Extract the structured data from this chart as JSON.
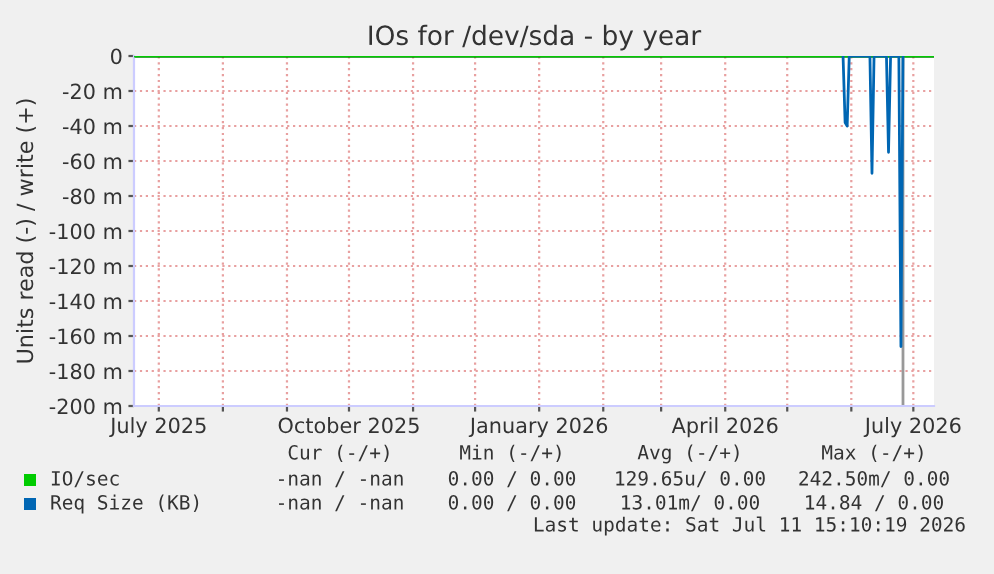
{
  "chart_data": {
    "type": "line",
    "title": "IOs for /dev/sda - by year",
    "ylabel": "Units read (-) / write (+)",
    "xlim": [
      "2025-06-19",
      "2026-07-11"
    ],
    "xticks": [
      {
        "value": "2025-07-01",
        "label": "July 2025"
      },
      {
        "value": "2025-08-01",
        "label": null
      },
      {
        "value": "2025-09-01",
        "label": null
      },
      {
        "value": "2025-10-01",
        "label": "October 2025"
      },
      {
        "value": "2025-11-01",
        "label": null
      },
      {
        "value": "2025-12-01",
        "label": null
      },
      {
        "value": "2026-01-01",
        "label": "January 2026"
      },
      {
        "value": "2026-02-01",
        "label": null
      },
      {
        "value": "2026-03-01",
        "label": null
      },
      {
        "value": "2026-04-01",
        "label": "April 2026"
      },
      {
        "value": "2026-05-01",
        "label": null
      },
      {
        "value": "2026-06-01",
        "label": null
      },
      {
        "value": "2026-07-01",
        "label": "July 2026"
      }
    ],
    "ylim": [
      -200,
      0
    ],
    "yticks": [
      {
        "value": 0,
        "label": "0"
      },
      {
        "value": -20,
        "label": "-20 m"
      },
      {
        "value": -40,
        "label": "-40 m"
      },
      {
        "value": -60,
        "label": "-60 m"
      },
      {
        "value": -80,
        "label": "-80 m"
      },
      {
        "value": -100,
        "label": "-100 m"
      },
      {
        "value": -120,
        "label": "-120 m"
      },
      {
        "value": -140,
        "label": "-140 m"
      },
      {
        "value": -160,
        "label": "-160 m"
      },
      {
        "value": -180,
        "label": "-180 m"
      },
      {
        "value": -200,
        "label": "-200 m"
      }
    ],
    "grid": true,
    "legend": "bottom",
    "ref_lines": [
      {
        "axis": "y",
        "value": 0,
        "color": "#000000"
      },
      {
        "axis": "x",
        "value": "2026-06-26",
        "color": "#999999"
      }
    ],
    "series": [
      {
        "name": "IO/sec",
        "color": "#00cc00",
        "x": [
          "2025-06-19",
          "2026-07-11"
        ],
        "values": [
          0,
          0
        ]
      },
      {
        "name": "Req Size (KB)",
        "color": "#0066b3",
        "x": [
          "2026-05-28",
          "2026-05-29",
          "2026-05-30",
          "2026-05-31",
          "2026-06-10",
          "2026-06-11",
          "2026-06-12",
          "2026-06-18",
          "2026-06-19",
          "2026-06-20",
          "2026-06-24",
          "2026-06-25",
          "2026-06-26"
        ],
        "values": [
          0,
          -38,
          -40,
          0,
          0,
          -67,
          0,
          0,
          -55,
          0,
          0,
          -166,
          0
        ]
      }
    ],
    "annotations": [
      "Cur (-/+)",
      "Min (-/+)",
      "Avg (-/+)",
      "Max (-/+)",
      "-nan / -nan",
      "0.00 / 0.00",
      "129.65u/ 0.00",
      "242.50m/ 0.00",
      "-nan / -nan",
      "0.00 / 0.00",
      "13.01m/ 0.00",
      "14.84 / 0.00",
      "Last update: Sat Jul 11 15:10:19 2026"
    ]
  }
}
